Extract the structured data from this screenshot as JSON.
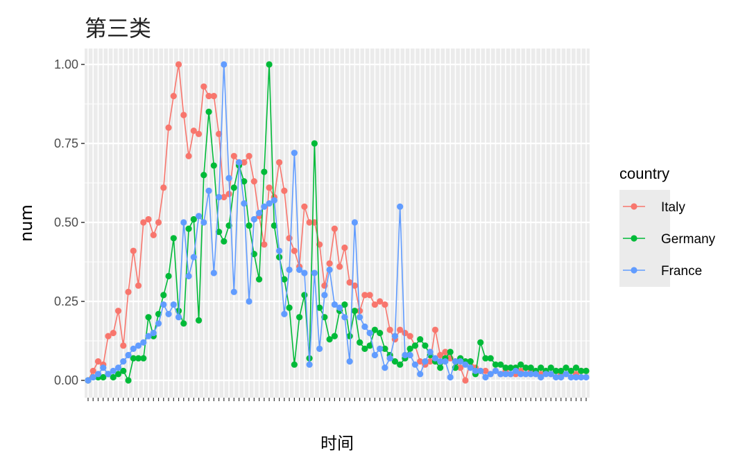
{
  "title": "第三类",
  "legend": {
    "title": "country",
    "position": "right",
    "items": [
      {
        "name": "Italy",
        "color": "#F8766D"
      },
      {
        "name": "Germany",
        "color": "#00BA38"
      },
      {
        "name": "France",
        "color": "#619CFF"
      }
    ]
  },
  "chart_data": {
    "type": "line",
    "title": "第三类",
    "xlabel": "时间",
    "ylabel": "num",
    "ylim": [
      0,
      1
    ],
    "yticks": [
      "0.00",
      "0.25",
      "0.50",
      "0.75",
      "1.00"
    ],
    "grid": true,
    "legend_position": "right",
    "points_per_series": 100,
    "series": [
      {
        "name": "Italy",
        "color": "#F8766D",
        "values": [
          0.0,
          0.03,
          0.06,
          0.05,
          0.14,
          0.15,
          0.22,
          0.11,
          0.28,
          0.41,
          0.3,
          0.5,
          0.51,
          0.46,
          0.5,
          0.61,
          0.8,
          0.9,
          1.0,
          0.84,
          0.71,
          0.79,
          0.78,
          0.93,
          0.9,
          0.9,
          0.78,
          0.58,
          0.59,
          0.71,
          0.69,
          0.69,
          0.71,
          0.63,
          0.52,
          0.43,
          0.61,
          0.58,
          0.69,
          0.6,
          0.45,
          0.41,
          0.36,
          0.55,
          0.5,
          0.5,
          0.43,
          0.3,
          0.37,
          0.48,
          0.36,
          0.42,
          0.31,
          0.3,
          0.22,
          0.27,
          0.27,
          0.24,
          0.25,
          0.24,
          0.16,
          0.13,
          0.16,
          0.15,
          0.14,
          0.11,
          0.06,
          0.05,
          0.06,
          0.16,
          0.08,
          0.09,
          0.07,
          0.06,
          0.04,
          0.0,
          0.06,
          0.04,
          0.03,
          0.03,
          0.02,
          0.03,
          0.02,
          0.03,
          0.02,
          0.02,
          0.03,
          0.02,
          0.03,
          0.02,
          0.02,
          0.03,
          0.02,
          0.03,
          0.02,
          0.02,
          0.03,
          0.02,
          0.03,
          0.03
        ]
      },
      {
        "name": "Germany",
        "color": "#00BA38",
        "values": [
          0.0,
          0.01,
          0.01,
          0.01,
          0.02,
          0.01,
          0.02,
          0.03,
          0.0,
          0.07,
          0.07,
          0.07,
          0.2,
          0.14,
          0.21,
          0.27,
          0.33,
          0.45,
          0.22,
          0.18,
          0.48,
          0.51,
          0.19,
          0.65,
          0.85,
          0.68,
          0.47,
          0.44,
          0.49,
          0.61,
          0.68,
          0.63,
          0.49,
          0.4,
          0.32,
          0.66,
          1.0,
          0.49,
          0.39,
          0.32,
          0.23,
          0.05,
          0.2,
          0.27,
          0.07,
          0.75,
          0.23,
          0.2,
          0.13,
          0.14,
          0.22,
          0.24,
          0.14,
          0.22,
          0.12,
          0.1,
          0.11,
          0.16,
          0.15,
          0.1,
          0.08,
          0.06,
          0.05,
          0.07,
          0.1,
          0.11,
          0.13,
          0.11,
          0.08,
          0.06,
          0.04,
          0.07,
          0.09,
          0.04,
          0.07,
          0.06,
          0.06,
          0.02,
          0.12,
          0.07,
          0.07,
          0.05,
          0.05,
          0.04,
          0.04,
          0.04,
          0.05,
          0.04,
          0.04,
          0.03,
          0.04,
          0.03,
          0.04,
          0.03,
          0.03,
          0.04,
          0.03,
          0.04,
          0.03,
          0.03
        ]
      },
      {
        "name": "France",
        "color": "#619CFF",
        "values": [
          0.0,
          0.01,
          0.02,
          0.04,
          0.02,
          0.03,
          0.04,
          0.06,
          0.08,
          0.1,
          0.11,
          0.12,
          0.14,
          0.15,
          0.18,
          0.24,
          0.21,
          0.24,
          0.2,
          0.5,
          0.33,
          0.39,
          0.52,
          0.5,
          0.6,
          0.34,
          0.58,
          1.0,
          0.64,
          0.28,
          0.69,
          0.56,
          0.25,
          0.51,
          0.53,
          0.55,
          0.56,
          0.57,
          0.41,
          0.21,
          0.35,
          0.72,
          0.35,
          0.34,
          0.05,
          0.34,
          0.1,
          0.27,
          0.35,
          0.24,
          0.23,
          0.2,
          0.06,
          0.5,
          0.2,
          0.17,
          0.15,
          0.08,
          0.1,
          0.04,
          0.07,
          0.14,
          0.55,
          0.08,
          0.08,
          0.05,
          0.02,
          0.06,
          0.09,
          0.07,
          0.06,
          0.06,
          0.01,
          0.06,
          0.06,
          0.05,
          0.04,
          0.03,
          0.03,
          0.01,
          0.02,
          0.03,
          0.02,
          0.02,
          0.02,
          0.03,
          0.02,
          0.02,
          0.02,
          0.02,
          0.01,
          0.02,
          0.02,
          0.01,
          0.01,
          0.02,
          0.01,
          0.01,
          0.01,
          0.01
        ]
      }
    ]
  }
}
